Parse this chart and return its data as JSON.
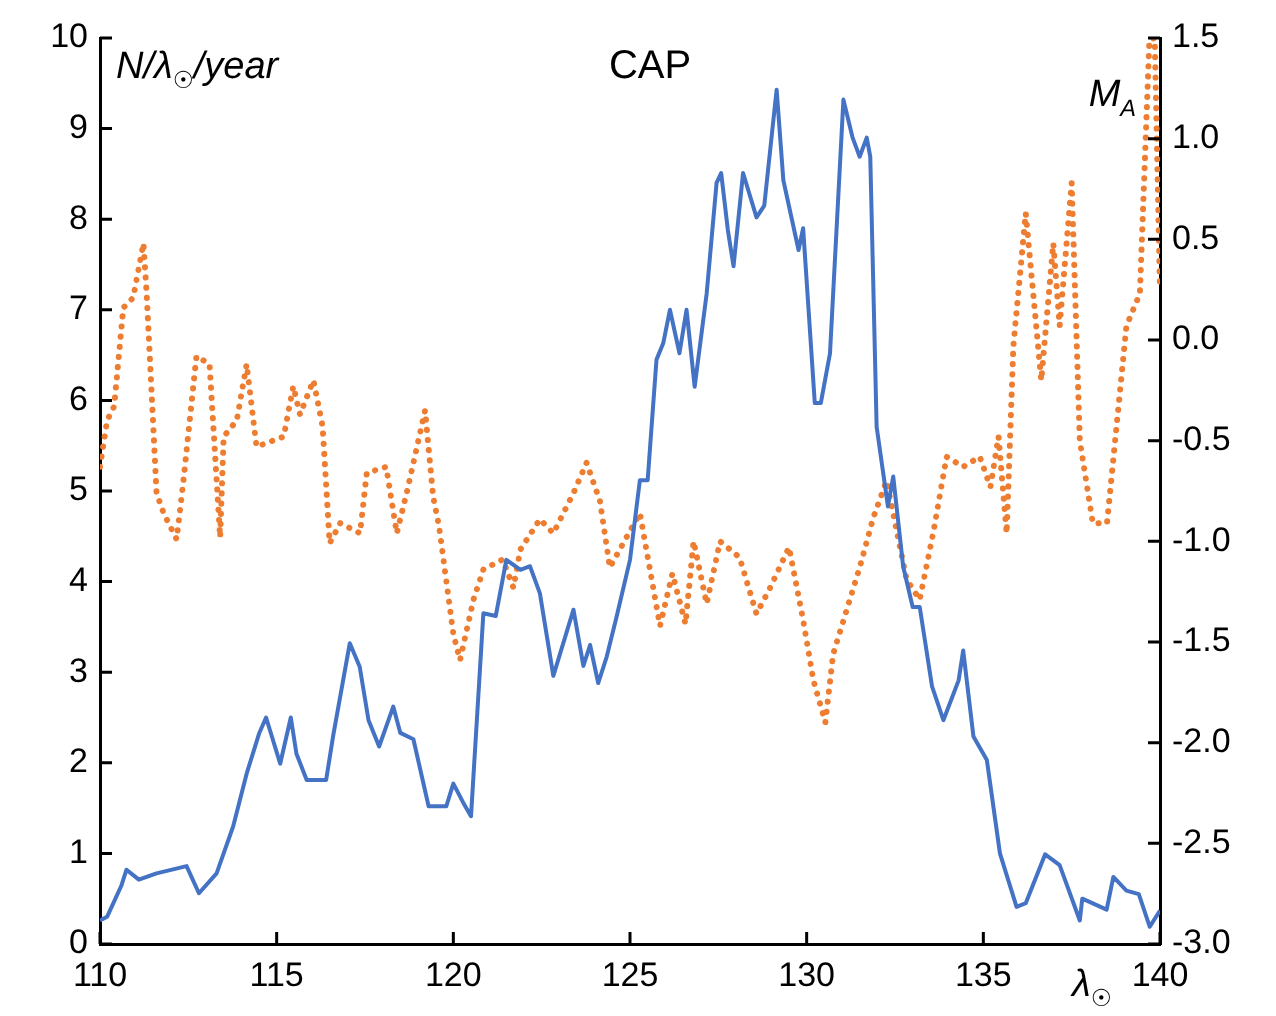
{
  "chart_data": {
    "type": "line",
    "title": "CAP",
    "xlabel": "λ$_{☉}$",
    "ylabel": "N/λ$_{☉}$/year",
    "y2label": "M$_{A}$",
    "xlim": [
      110,
      140
    ],
    "xticks": [
      110,
      115,
      120,
      125,
      130,
      135,
      140
    ],
    "ylim": [
      0,
      10
    ],
    "yticks": [
      0,
      1,
      2,
      3,
      4,
      5,
      6,
      7,
      8,
      9,
      10
    ],
    "y2lim": [
      -3,
      1.5
    ],
    "y2ticks": [
      {
        "value": -3,
        "label": "-3.0"
      },
      {
        "value": -2.5,
        "label": "-2.5"
      },
      {
        "value": -2,
        "label": "-2.0"
      },
      {
        "value": -1.5,
        "label": "-1.5"
      },
      {
        "value": -1,
        "label": "-1.0"
      },
      {
        "value": -0.5,
        "label": "-0.5"
      },
      {
        "value": 0,
        "label": "0.0"
      },
      {
        "value": 0.5,
        "label": "0.5"
      },
      {
        "value": 1,
        "label": "1.0"
      },
      {
        "value": 1.5,
        "label": "1.5"
      }
    ],
    "grid": false,
    "legend": false,
    "marker": "none",
    "series": [
      {
        "color": "#4472c4",
        "line_style": "solid",
        "x": [
          110,
          110.2,
          110.6,
          110.75,
          111.1,
          111.6,
          112.45,
          112.8,
          113.3,
          113.77,
          114.15,
          114.5,
          114.7,
          115.1,
          115.4,
          115.56,
          115.85,
          116.4,
          116.6,
          117.07,
          117.35,
          117.6,
          117.9,
          118.3,
          118.5,
          118.87,
          119.3,
          119.8,
          120,
          120.28,
          120.5,
          120.85,
          121.2,
          121.5,
          121.9,
          122.17,
          122.45,
          122.83,
          123.4,
          123.68,
          123.87,
          124.1,
          124.34,
          124.6,
          125,
          125.28,
          125.5,
          125.75,
          125.94,
          126.13,
          126.4,
          126.6,
          126.83,
          127.17,
          127.45,
          127.58,
          127.77,
          127.93,
          128.2,
          128.58,
          128.8,
          129.15,
          129.34,
          129.77,
          129.9,
          130.23,
          130.4,
          130.66,
          131.04,
          131.3,
          131.5,
          131.7,
          131.8,
          131.98,
          132.3,
          132.45,
          132.73,
          133,
          133.2,
          133.55,
          133.87,
          134.3,
          134.43,
          134.72,
          135.1,
          135.47,
          135.94,
          136.2,
          136.75,
          137.16,
          137.73,
          137.8,
          138.49,
          138.68,
          139.05,
          139.4,
          139.71,
          140
        ],
        "values": [
          0.26,
          0.3,
          0.64,
          0.82,
          0.71,
          0.78,
          0.86,
          0.56,
          0.78,
          1.3,
          1.88,
          2.32,
          2.5,
          1.99,
          2.5,
          2.1,
          1.81,
          1.81,
          2.3,
          3.32,
          3.06,
          2.47,
          2.18,
          2.62,
          2.33,
          2.26,
          1.52,
          1.52,
          1.77,
          1.56,
          1.41,
          3.65,
          3.62,
          4.24,
          4.13,
          4.17,
          3.87,
          2.96,
          3.69,
          3.07,
          3.3,
          2.88,
          3.17,
          3.58,
          4.24,
          5.12,
          5.12,
          6.45,
          6.63,
          7,
          6.52,
          7,
          6.15,
          7.18,
          8.4,
          8.51,
          7.88,
          7.48,
          8.51,
          8.02,
          8.15,
          9.43,
          8.43,
          7.66,
          7.9,
          5.97,
          5.97,
          6.52,
          9.32,
          8.9,
          8.69,
          8.9,
          8.69,
          5.71,
          4.83,
          5.16,
          4.17,
          3.72,
          3.72,
          2.84,
          2.47,
          2.91,
          3.24,
          2.29,
          2.03,
          1,
          0.41,
          0.45,
          0.99,
          0.87,
          0.26,
          0.5,
          0.38,
          0.74,
          0.59,
          0.55,
          0.19,
          0.37
        ]
      },
      {
        "color": "#ed7d31",
        "line_style": "dotted",
        "axis": "y2",
        "x": [
          110,
          110.2,
          110.4,
          110.66,
          110.94,
          111.23,
          111.32,
          111.5,
          111.6,
          111.8,
          112.17,
          112.36,
          112.73,
          113.1,
          113.4,
          113.5,
          113.87,
          114.15,
          114.43,
          115.2,
          115.47,
          115.66,
          116.04,
          116.3,
          116.5,
          116.8,
          117.36,
          117.55,
          118.1,
          118.4,
          118.68,
          119.2,
          119.43,
          119.6,
          120,
          120.19,
          120.57,
          120.85,
          121.4,
          121.7,
          121.9,
          122.45,
          122.83,
          123.4,
          123.77,
          124.15,
          124.43,
          124.9,
          125.28,
          125.85,
          126.2,
          126.57,
          126.8,
          127.17,
          127.55,
          128.1,
          128.58,
          128.94,
          129.5,
          129.9,
          130.19,
          130.53,
          130.75,
          131.5,
          131.89,
          132.26,
          132.83,
          133.2,
          133.58,
          133.96,
          134.43,
          134.9,
          135.2,
          135.43,
          135.66,
          135.85,
          136.2,
          136.64,
          136.98,
          137.16,
          137.5,
          137.73,
          138.1,
          138.5,
          139.05,
          139.43,
          139.7,
          139.85,
          140
        ],
        "values": [
          -0.63,
          -0.4,
          -0.33,
          0.16,
          0.21,
          0.48,
          0.23,
          -0.4,
          -0.76,
          -0.86,
          -0.99,
          -0.7,
          -0.08,
          -0.12,
          -0.98,
          -0.48,
          -0.4,
          -0.12,
          -0.53,
          -0.48,
          -0.23,
          -0.37,
          -0.2,
          -0.43,
          -1.01,
          -0.91,
          -0.96,
          -0.66,
          -0.63,
          -0.96,
          -0.76,
          -0.35,
          -0.78,
          -0.93,
          -1.46,
          -1.59,
          -1.29,
          -1.14,
          -1.09,
          -1.23,
          -1.04,
          -0.89,
          -0.96,
          -0.76,
          -0.61,
          -0.8,
          -1.13,
          -0.98,
          -0.86,
          -1.42,
          -1.16,
          -1.41,
          -1,
          -1.31,
          -1,
          -1.08,
          -1.36,
          -1.24,
          -1.03,
          -1.39,
          -1.69,
          -1.9,
          -1.56,
          -1.13,
          -0.88,
          -0.7,
          -1.19,
          -1.29,
          -0.96,
          -0.58,
          -0.63,
          -0.58,
          -0.73,
          -0.48,
          -0.96,
          -0.03,
          0.63,
          -0.2,
          0.48,
          0.07,
          0.78,
          -0.5,
          -0.91,
          -0.91,
          0.07,
          0.23,
          1.49,
          1.5,
          0.25
        ]
      }
    ]
  }
}
